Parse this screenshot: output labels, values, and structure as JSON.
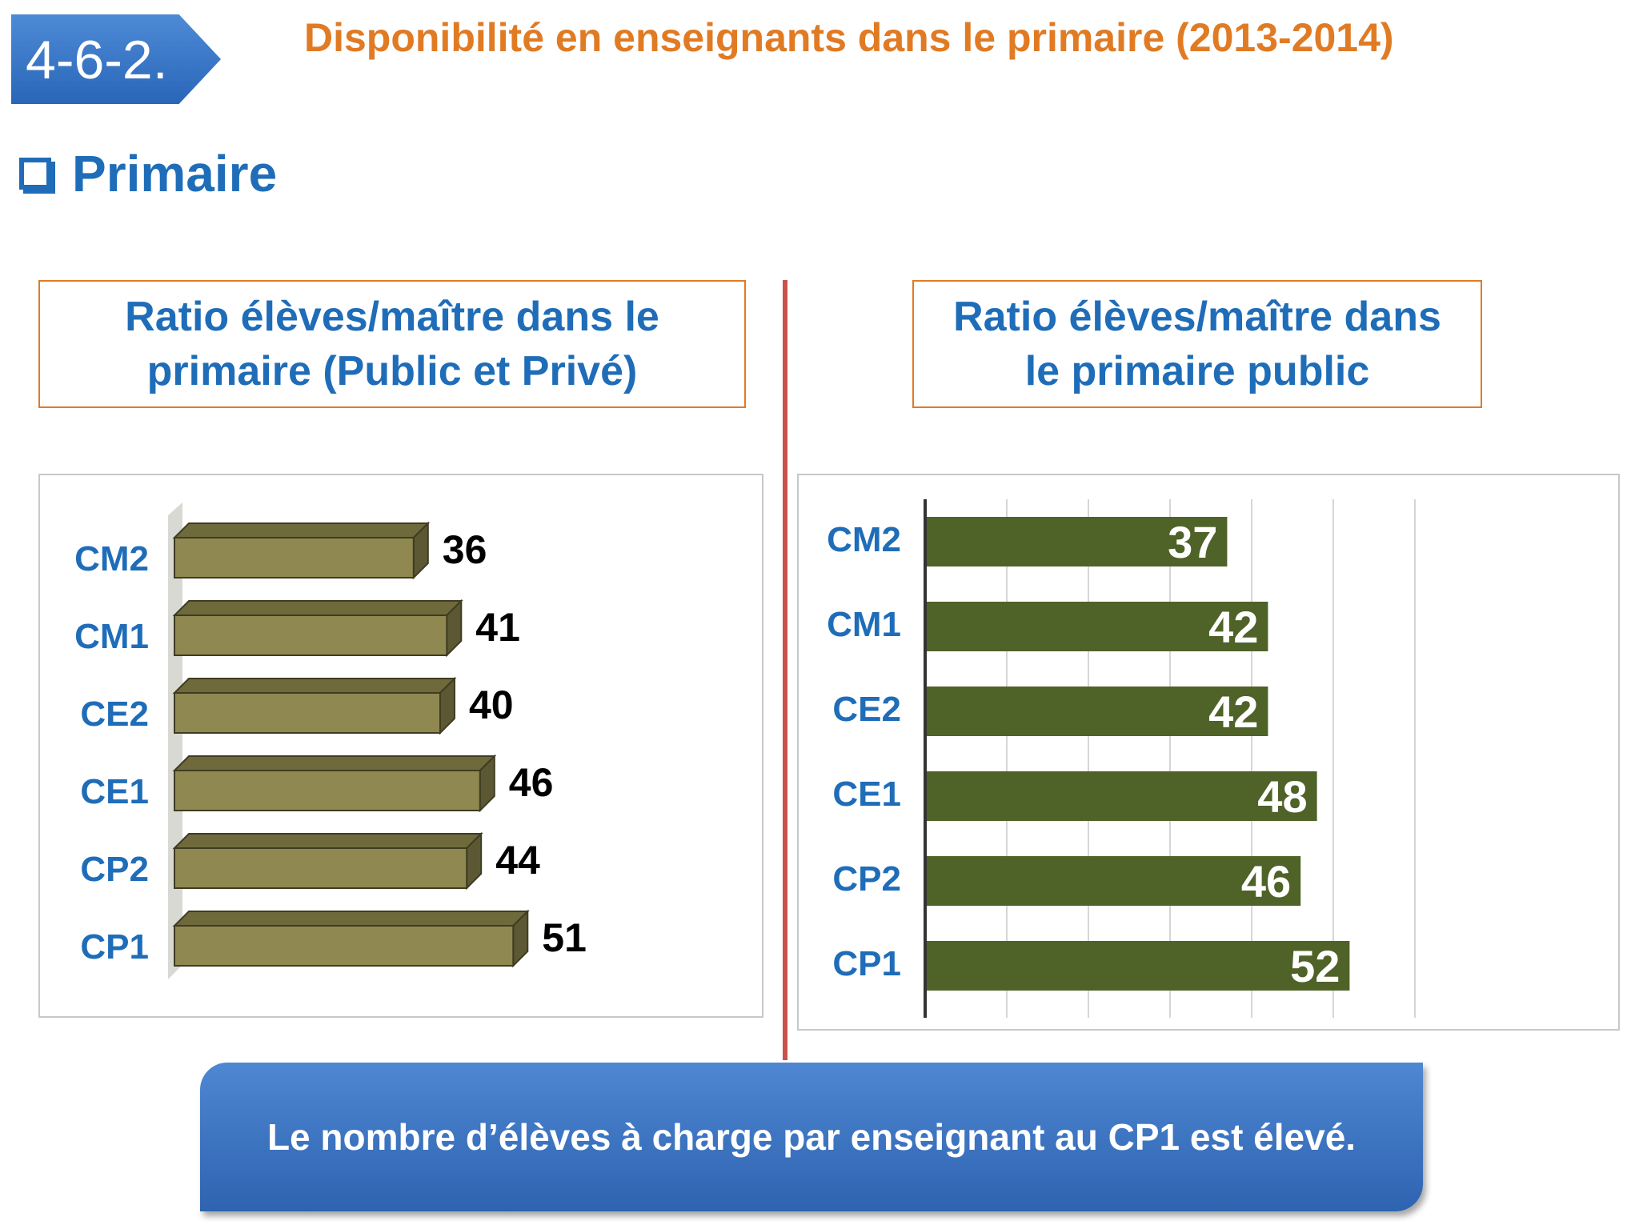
{
  "header": {
    "section_number": "4-6-2.",
    "title": "Disponibilité en enseignants dans le primaire (2013-2014)"
  },
  "section": {
    "label": "Primaire"
  },
  "colors": {
    "accent_orange": "#e07b24",
    "text_blue": "#1f6db8",
    "left_bar": "#8f8850",
    "right_bar": "#4f6228",
    "divider": "#c9524c"
  },
  "chart_data": [
    {
      "type": "bar",
      "orientation": "horizontal",
      "title": "Ratio élèves/maître dans le primaire (Public et Privé)",
      "categories": [
        "CM2",
        "CM1",
        "CE2",
        "CE1",
        "CP2",
        "CP1"
      ],
      "values": [
        36,
        41,
        40,
        46,
        44,
        51
      ],
      "xlim": [
        0,
        55
      ],
      "grid": false,
      "style": "3d"
    },
    {
      "type": "bar",
      "orientation": "horizontal",
      "title": "Ratio élèves/maître dans le primaire  public",
      "categories": [
        "CM2",
        "CM1",
        "CE2",
        "CE1",
        "CP2",
        "CP1"
      ],
      "values": [
        37,
        42,
        42,
        48,
        46,
        52
      ],
      "xlim": [
        0,
        60
      ],
      "grid": true
    }
  ],
  "callout": {
    "text": "Le nombre d’élèves à charge par enseignant  au CP1 est élevé."
  }
}
